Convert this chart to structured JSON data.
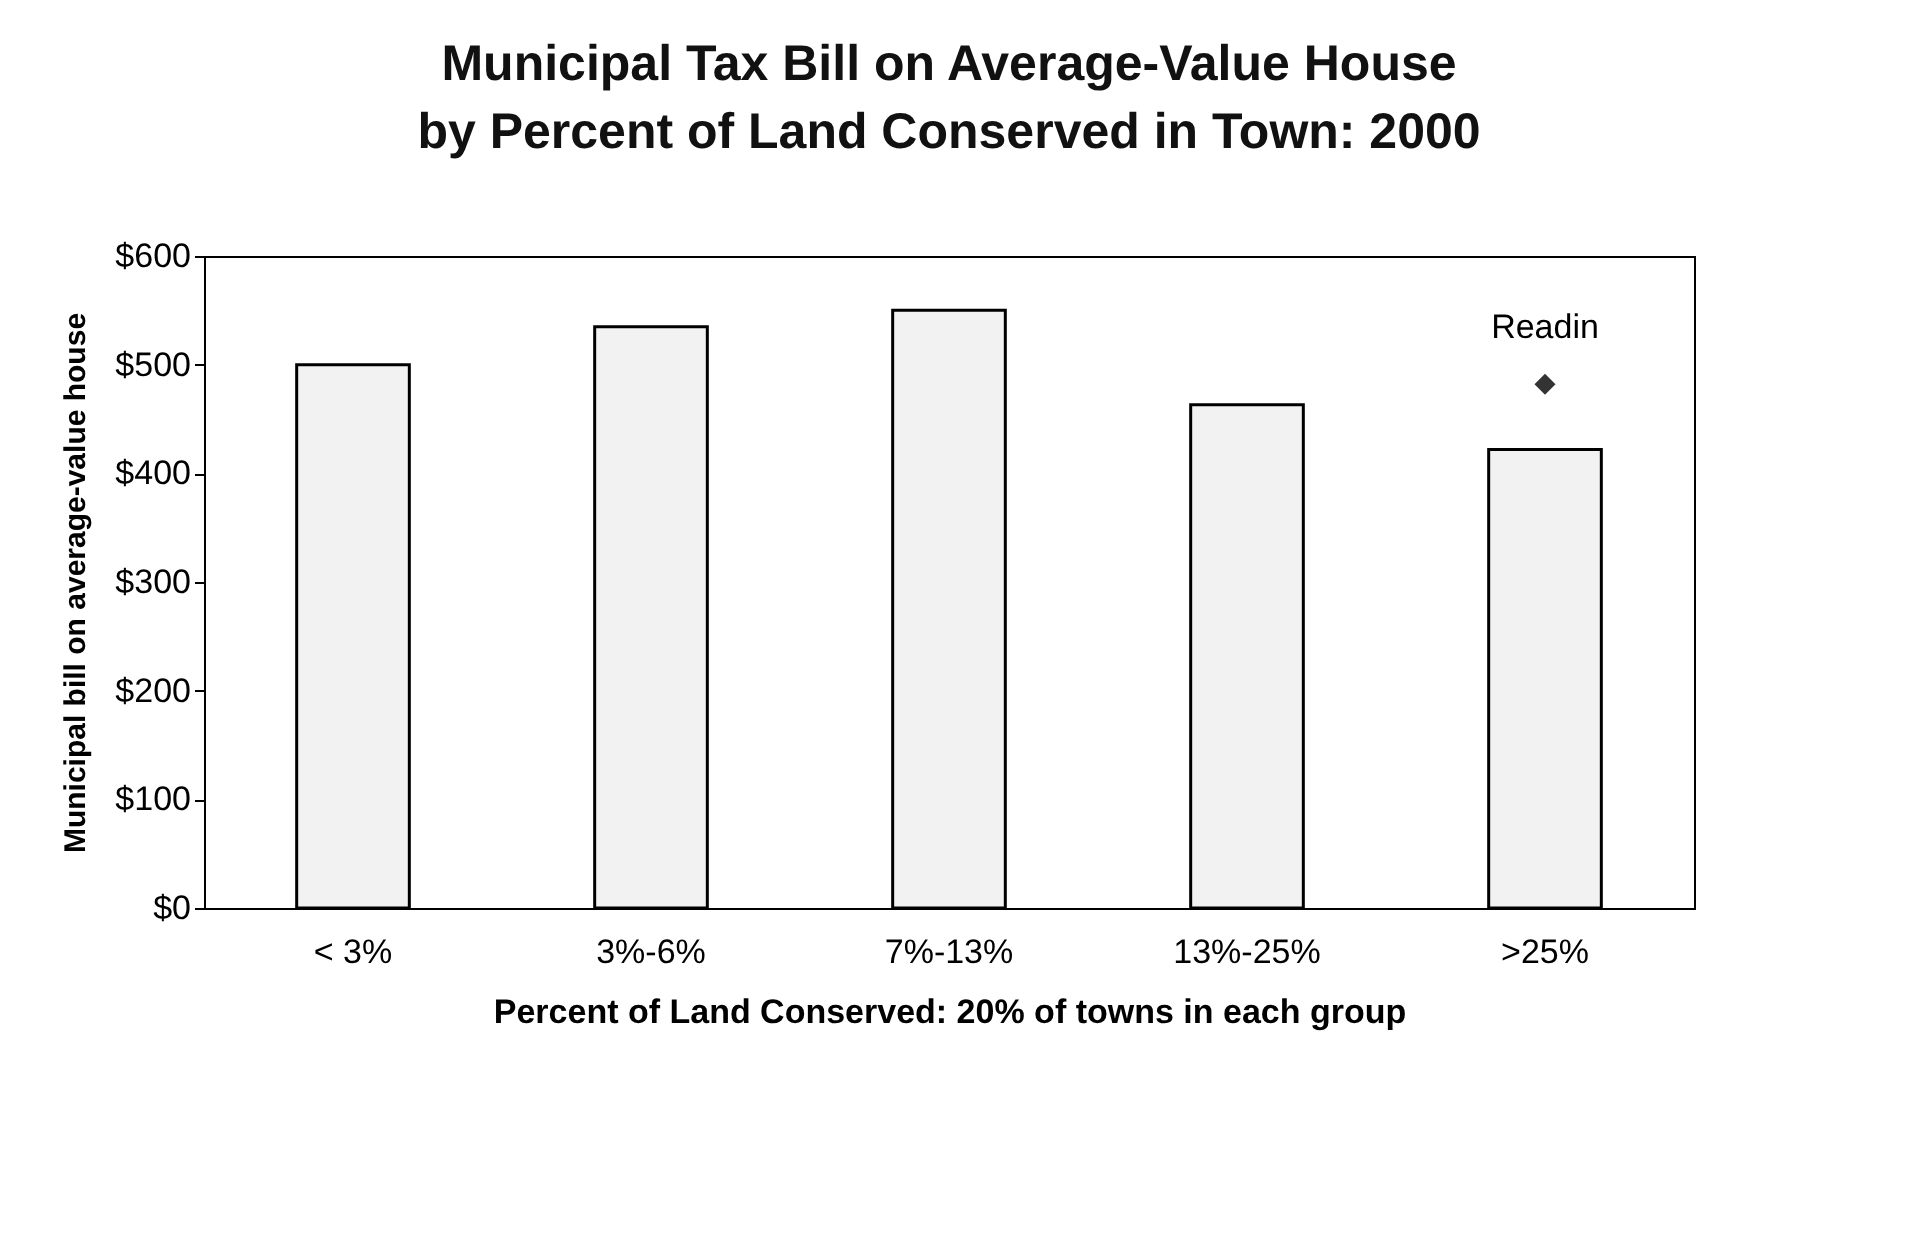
{
  "chart_data": {
    "type": "bar",
    "title": "Municipal Tax Bill on Average-Value House by Percent of Land Conserved in Town: 2000",
    "xlabel": "Percent of Land Conserved: 20% of towns in each group",
    "ylabel": "Municipal bill on average-value house",
    "categories": [
      "< 3%",
      "3%-6%",
      "7%-13%",
      "13%-25%",
      ">25%"
    ],
    "series": [
      {
        "color": "#f2f2f2",
        "values": [
          500,
          535,
          550,
          463,
          422
        ]
      },
      {
        "type": "scatter",
        "name": "Readin",
        "color": "#333333",
        "values": [
          null,
          null,
          null,
          null,
          482
        ]
      }
    ],
    "marker": "diamond",
    "ylim": [
      0,
      600
    ],
    "yticks": [
      {
        "value": 0,
        "label": "$0"
      },
      {
        "value": 100,
        "label": "$100"
      },
      {
        "value": 200,
        "label": "$200"
      },
      {
        "value": 300,
        "label": "$300"
      },
      {
        "value": 400,
        "label": "$400"
      },
      {
        "value": 500,
        "label": "$500"
      },
      {
        "value": 600,
        "label": "$600"
      }
    ],
    "grid": false,
    "legend": false
  }
}
